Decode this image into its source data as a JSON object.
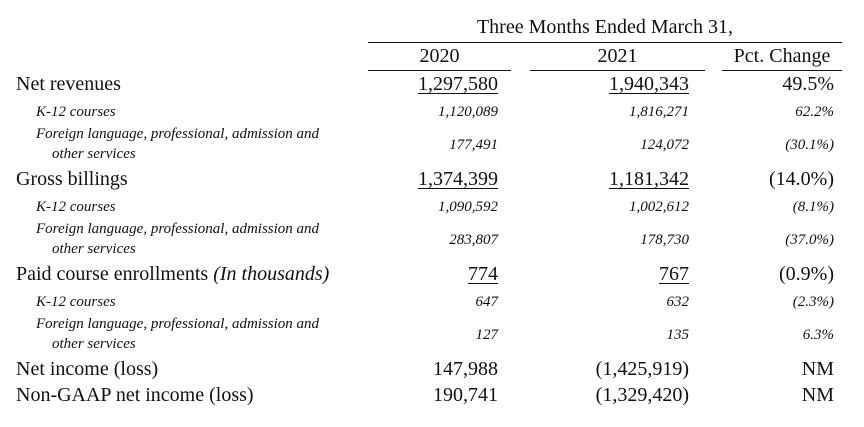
{
  "table": {
    "group_header": "Three Months Ended March 31,",
    "columns": [
      "2020",
      "2021",
      "Pct. Change"
    ],
    "rows": [
      {
        "label": "Net revenues",
        "v2020": "1,297,580",
        "v2021": "1,940,343",
        "pct": "49.5%"
      },
      {
        "label": "K-12 courses",
        "v2020": "1,120,089",
        "v2021": "1,816,271",
        "pct": "62.2%"
      },
      {
        "label_line1": "Foreign language, professional, admission and",
        "label_line2": "other services",
        "v2020": "177,491",
        "v2021": "124,072",
        "pct": "(30.1%)"
      },
      {
        "label": "Gross billings",
        "v2020": "1,374,399",
        "v2021": "1,181,342",
        "pct": "(14.0%)"
      },
      {
        "label": "K-12 courses",
        "v2020": "1,090,592",
        "v2021": "1,002,612",
        "pct": "(8.1%)"
      },
      {
        "label_line1": "Foreign language, professional, admission and",
        "label_line2": "other services",
        "v2020": "283,807",
        "v2021": "178,730",
        "pct": "(37.0%)"
      },
      {
        "label": "Paid course enrollments",
        "label_suffix": "(In thousands)",
        "v2020": "774",
        "v2021": "767",
        "pct": "(0.9%)"
      },
      {
        "label": "K-12 courses",
        "v2020": "647",
        "v2021": "632",
        "pct": "(2.3%)"
      },
      {
        "label_line1": "Foreign language, professional, admission and",
        "label_line2": "other services",
        "v2020": "127",
        "v2021": "135",
        "pct": "6.3%"
      },
      {
        "label": "Net income (loss)",
        "v2020": "147,988",
        "v2021": "(1,425,919)",
        "pct": "NM"
      },
      {
        "label": "Non-GAAP net income (loss)",
        "v2020": "190,741",
        "v2021": "(1,329,420)",
        "pct": "NM"
      }
    ]
  }
}
